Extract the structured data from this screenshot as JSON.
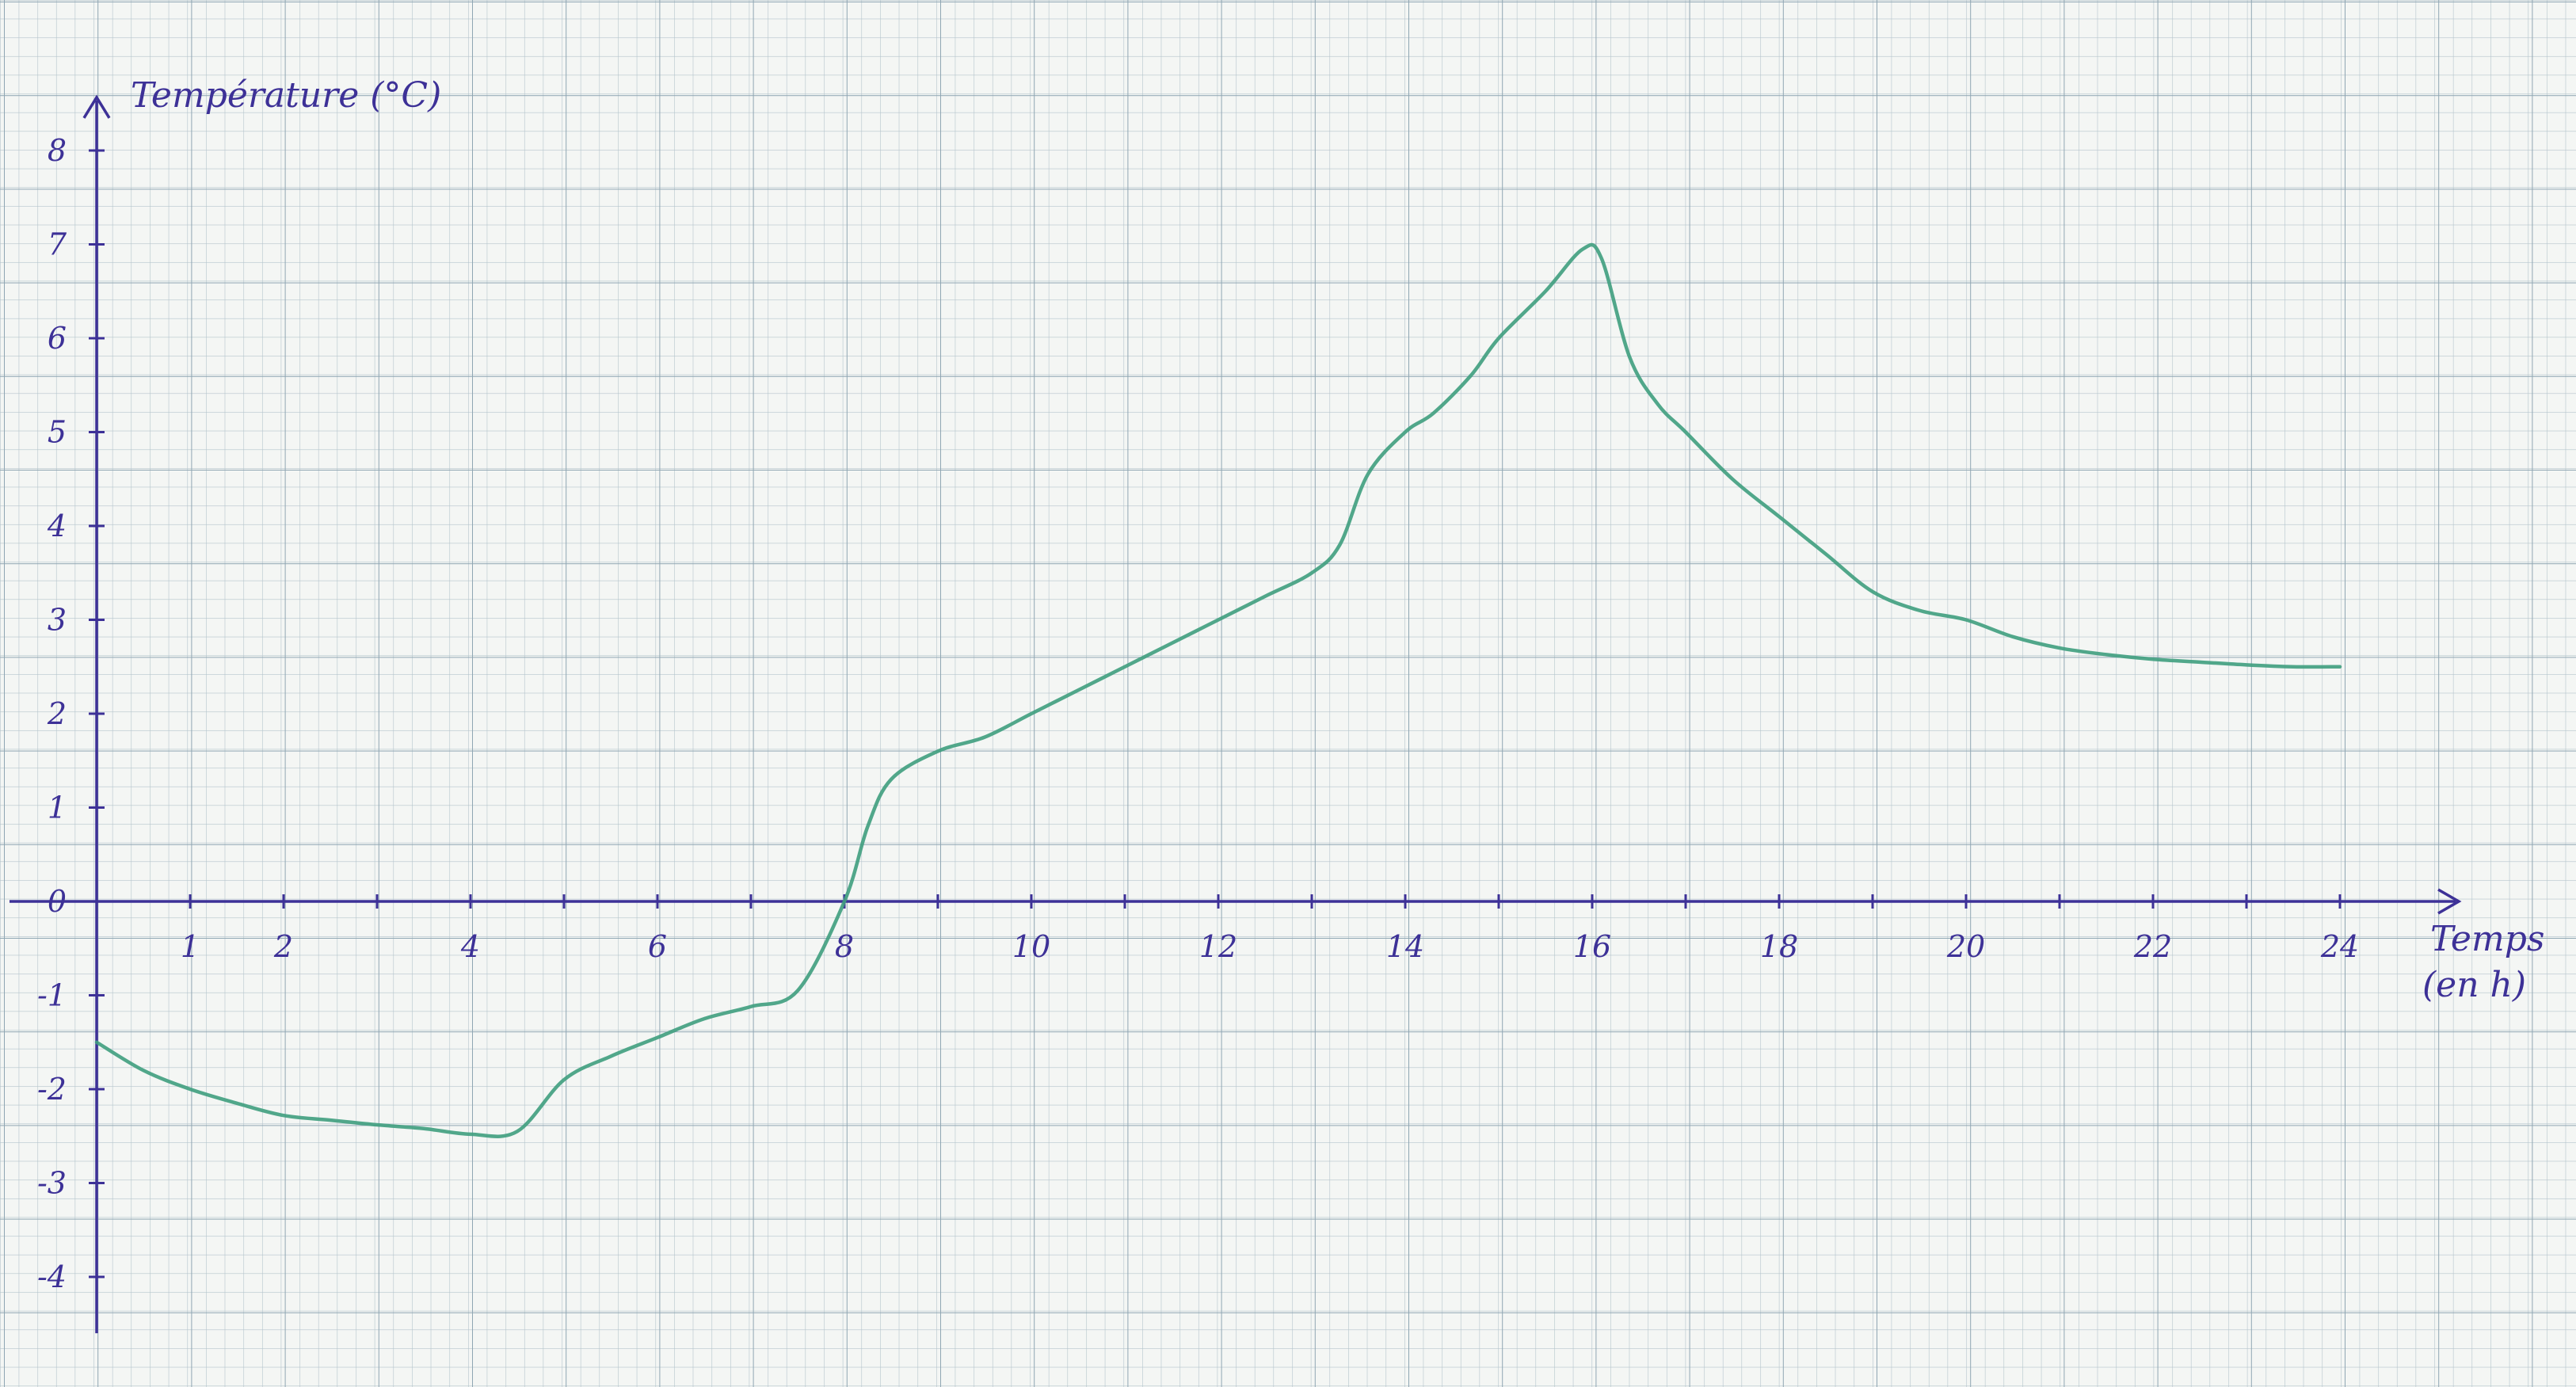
{
  "chart_data": {
    "type": "line",
    "title": "",
    "ylabel": "Température (°C)",
    "xlabel_line1": "Temps",
    "xlabel_line2": "(en h)",
    "xlim": [
      0,
      25
    ],
    "ylim": [
      -4.6,
      8.6
    ],
    "x_ticks": [
      1,
      2,
      4,
      6,
      8,
      10,
      12,
      14,
      16,
      18,
      20,
      22,
      24
    ],
    "x_tick_labels": [
      "1",
      "2",
      "4",
      "6",
      "8",
      "10",
      "12",
      "14",
      "16",
      "18",
      "20",
      "22",
      "24"
    ],
    "y_ticks": [
      8,
      7,
      6,
      5,
      4,
      3,
      2,
      1,
      0,
      -1,
      -2,
      -3,
      -4
    ],
    "y_tick_labels": [
      "8",
      "7",
      "6",
      "5",
      "4",
      "3",
      "2",
      "1",
      "0",
      "-1",
      "-2",
      "-3",
      "-4"
    ],
    "grid": true,
    "series": [
      {
        "color": "#3f9e7e",
        "x": [
          0,
          0.5,
          1,
          1.5,
          2,
          2.5,
          3,
          3.5,
          4,
          4.5,
          5,
          5.5,
          6,
          6.5,
          7,
          7.5,
          8,
          8.25,
          8.5,
          9,
          9.5,
          10,
          10.5,
          11,
          11.5,
          12,
          12.5,
          13,
          13.3,
          13.6,
          14,
          14.3,
          14.7,
          15,
          15.5,
          15.9,
          16.1,
          16.4,
          16.7,
          17,
          17.5,
          18,
          18.5,
          19,
          19.5,
          20,
          20.5,
          21,
          21.5,
          22,
          22.5,
          23,
          23.5,
          24
        ],
        "y": [
          -1.5,
          -1.8,
          -2.0,
          -2.15,
          -2.28,
          -2.33,
          -2.38,
          -2.42,
          -2.48,
          -2.45,
          -1.9,
          -1.65,
          -1.45,
          -1.25,
          -1.12,
          -0.95,
          0.0,
          0.8,
          1.3,
          1.6,
          1.75,
          2.0,
          2.25,
          2.5,
          2.75,
          3.0,
          3.25,
          3.5,
          3.8,
          4.55,
          5.0,
          5.2,
          5.6,
          6.0,
          6.5,
          6.95,
          6.85,
          5.8,
          5.3,
          5.0,
          4.5,
          4.1,
          3.7,
          3.3,
          3.1,
          3.0,
          2.82,
          2.7,
          2.63,
          2.58,
          2.55,
          2.52,
          2.5,
          2.5
        ]
      }
    ]
  }
}
